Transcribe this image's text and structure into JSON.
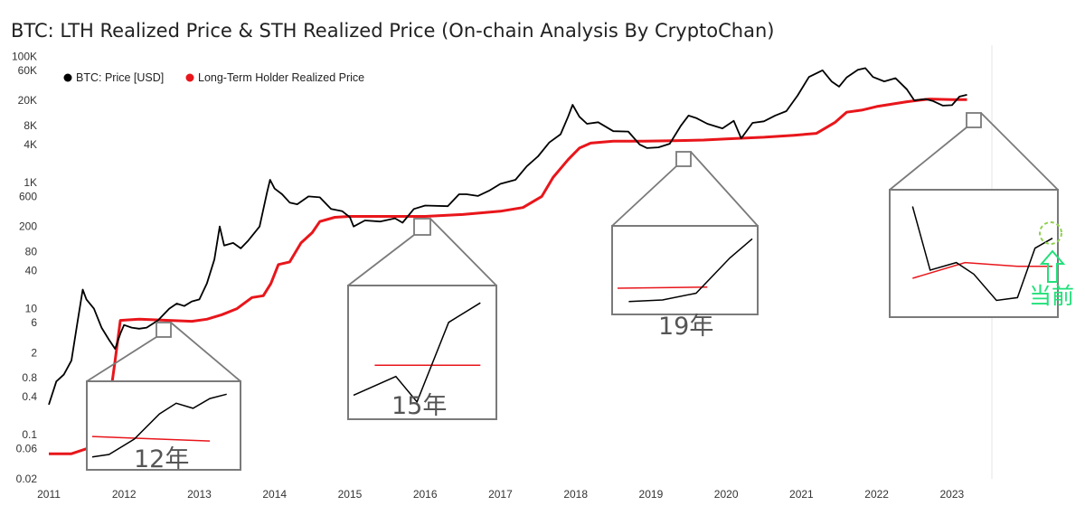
{
  "chart_data": {
    "type": "line",
    "title": "BTC: LTH Realized Price & STH Realized Price (On-chain Analysis By CryptoChan)",
    "y_scale": "log",
    "ylim": [
      0.02,
      150000
    ],
    "xlim": [
      2011.0,
      2023.35
    ],
    "y_ticks": [
      {
        "value": 100000,
        "label": "100K"
      },
      {
        "value": 60000,
        "label": "60K"
      },
      {
        "value": 20000,
        "label": "20K"
      },
      {
        "value": 8000,
        "label": "8K"
      },
      {
        "value": 4000,
        "label": "4K"
      },
      {
        "value": 1000,
        "label": "1K"
      },
      {
        "value": 600,
        "label": "600"
      },
      {
        "value": 200,
        "label": "200"
      },
      {
        "value": 80,
        "label": "80"
      },
      {
        "value": 40,
        "label": "40"
      },
      {
        "value": 10,
        "label": "10"
      },
      {
        "value": 6,
        "label": "6"
      },
      {
        "value": 2,
        "label": "2"
      },
      {
        "value": 0.8,
        "label": "0.8"
      },
      {
        "value": 0.4,
        "label": "0.4"
      },
      {
        "value": 0.1,
        "label": "0.1"
      },
      {
        "value": 0.06,
        "label": "0.06"
      },
      {
        "value": 0.02,
        "label": "0.02"
      }
    ],
    "x_ticks": [
      {
        "value": 2011,
        "label": "2011"
      },
      {
        "value": 2012,
        "label": "2012"
      },
      {
        "value": 2013,
        "label": "2013"
      },
      {
        "value": 2014,
        "label": "2014"
      },
      {
        "value": 2015,
        "label": "2015"
      },
      {
        "value": 2016,
        "label": "2016"
      },
      {
        "value": 2017,
        "label": "2017"
      },
      {
        "value": 2018,
        "label": "2018"
      },
      {
        "value": 2019,
        "label": "2019"
      },
      {
        "value": 2020,
        "label": "2020"
      },
      {
        "value": 2021,
        "label": "2021"
      },
      {
        "value": 2022,
        "label": "2022"
      },
      {
        "value": 2023,
        "label": "2023"
      }
    ],
    "legend_position": "top-left",
    "series": [
      {
        "name": "BTC: Price [USD]",
        "color": "#000000",
        "points": [
          [
            2011.0,
            0.3
          ],
          [
            2011.1,
            0.7
          ],
          [
            2011.2,
            0.9
          ],
          [
            2011.3,
            1.5
          ],
          [
            2011.38,
            6
          ],
          [
            2011.45,
            20
          ],
          [
            2011.5,
            14
          ],
          [
            2011.6,
            10
          ],
          [
            2011.7,
            5
          ],
          [
            2011.8,
            3.2
          ],
          [
            2011.88,
            2.3
          ],
          [
            2011.95,
            4
          ],
          [
            2012.0,
            5.5
          ],
          [
            2012.1,
            5
          ],
          [
            2012.2,
            4.8
          ],
          [
            2012.3,
            5
          ],
          [
            2012.45,
            6.5
          ],
          [
            2012.6,
            10
          ],
          [
            2012.7,
            12
          ],
          [
            2012.8,
            11
          ],
          [
            2012.9,
            13
          ],
          [
            2013.0,
            14
          ],
          [
            2013.1,
            25
          ],
          [
            2013.2,
            60
          ],
          [
            2013.27,
            200
          ],
          [
            2013.33,
            100
          ],
          [
            2013.45,
            110
          ],
          [
            2013.55,
            90
          ],
          [
            2013.65,
            120
          ],
          [
            2013.8,
            200
          ],
          [
            2013.9,
            700
          ],
          [
            2013.94,
            1100
          ],
          [
            2014.0,
            800
          ],
          [
            2014.1,
            650
          ],
          [
            2014.2,
            480
          ],
          [
            2014.3,
            450
          ],
          [
            2014.45,
            600
          ],
          [
            2014.6,
            580
          ],
          [
            2014.75,
            380
          ],
          [
            2014.9,
            350
          ],
          [
            2015.0,
            280
          ],
          [
            2015.05,
            200
          ],
          [
            2015.2,
            250
          ],
          [
            2015.4,
            240
          ],
          [
            2015.6,
            270
          ],
          [
            2015.7,
            230
          ],
          [
            2015.85,
            380
          ],
          [
            2016.0,
            430
          ],
          [
            2016.3,
            420
          ],
          [
            2016.45,
            650
          ],
          [
            2016.55,
            650
          ],
          [
            2016.7,
            610
          ],
          [
            2016.85,
            740
          ],
          [
            2017.0,
            950
          ],
          [
            2017.2,
            1100
          ],
          [
            2017.35,
            1800
          ],
          [
            2017.5,
            2600
          ],
          [
            2017.65,
            4300
          ],
          [
            2017.8,
            5800
          ],
          [
            2017.9,
            11000
          ],
          [
            2017.96,
            17000
          ],
          [
            2018.05,
            11000
          ],
          [
            2018.15,
            8500
          ],
          [
            2018.3,
            9000
          ],
          [
            2018.5,
            6500
          ],
          [
            2018.7,
            6400
          ],
          [
            2018.85,
            4000
          ],
          [
            2018.95,
            3500
          ],
          [
            2019.1,
            3600
          ],
          [
            2019.25,
            4100
          ],
          [
            2019.4,
            8000
          ],
          [
            2019.5,
            11500
          ],
          [
            2019.6,
            10500
          ],
          [
            2019.75,
            8500
          ],
          [
            2019.95,
            7200
          ],
          [
            2020.1,
            9500
          ],
          [
            2020.2,
            5000
          ],
          [
            2020.35,
            8800
          ],
          [
            2020.5,
            9300
          ],
          [
            2020.65,
            11500
          ],
          [
            2020.8,
            13500
          ],
          [
            2020.95,
            24000
          ],
          [
            2021.1,
            47000
          ],
          [
            2021.28,
            60000
          ],
          [
            2021.4,
            40000
          ],
          [
            2021.5,
            33000
          ],
          [
            2021.6,
            46000
          ],
          [
            2021.75,
            61000
          ],
          [
            2021.85,
            65000
          ],
          [
            2021.95,
            47000
          ],
          [
            2022.1,
            40000
          ],
          [
            2022.25,
            45000
          ],
          [
            2022.4,
            30000
          ],
          [
            2022.5,
            20000
          ],
          [
            2022.65,
            21000
          ],
          [
            2022.75,
            19500
          ],
          [
            2022.88,
            16500
          ],
          [
            2023.0,
            16800
          ],
          [
            2023.1,
            23000
          ],
          [
            2023.2,
            24500
          ]
        ]
      },
      {
        "name": "Long-Term Holder Realized Price",
        "color": "#e8161b",
        "points": [
          [
            2011.0,
            0.05
          ],
          [
            2011.3,
            0.05
          ],
          [
            2011.5,
            0.06
          ],
          [
            2011.7,
            0.1
          ],
          [
            2011.8,
            0.3
          ],
          [
            2011.88,
            1.5
          ],
          [
            2011.95,
            6.5
          ],
          [
            2012.2,
            6.8
          ],
          [
            2012.6,
            6.5
          ],
          [
            2012.9,
            6.3
          ],
          [
            2013.1,
            6.8
          ],
          [
            2013.3,
            8
          ],
          [
            2013.5,
            10
          ],
          [
            2013.7,
            15
          ],
          [
            2013.85,
            16
          ],
          [
            2013.95,
            25
          ],
          [
            2014.05,
            50
          ],
          [
            2014.2,
            55
          ],
          [
            2014.35,
            110
          ],
          [
            2014.5,
            160
          ],
          [
            2014.6,
            240
          ],
          [
            2014.8,
            280
          ],
          [
            2015.0,
            290
          ],
          [
            2015.5,
            290
          ],
          [
            2016.0,
            290
          ],
          [
            2016.5,
            310
          ],
          [
            2017.0,
            350
          ],
          [
            2017.3,
            400
          ],
          [
            2017.55,
            600
          ],
          [
            2017.7,
            1200
          ],
          [
            2017.9,
            2300
          ],
          [
            2018.05,
            3500
          ],
          [
            2018.2,
            4200
          ],
          [
            2018.5,
            4500
          ],
          [
            2018.9,
            4500
          ],
          [
            2019.3,
            4600
          ],
          [
            2019.7,
            4700
          ],
          [
            2020.0,
            4900
          ],
          [
            2020.5,
            5200
          ],
          [
            2020.9,
            5600
          ],
          [
            2021.2,
            6000
          ],
          [
            2021.45,
            9000
          ],
          [
            2021.6,
            13000
          ],
          [
            2021.8,
            14000
          ],
          [
            2022.0,
            16000
          ],
          [
            2022.4,
            19000
          ],
          [
            2022.7,
            21000
          ],
          [
            2023.0,
            20500
          ],
          [
            2023.2,
            20500
          ]
        ]
      }
    ]
  },
  "chart_title_text": "BTC: LTH Realized Price & STH Realized Price (On-chain Analysis By CryptoChan)",
  "legend": {
    "price_label": "BTC: Price [USD]",
    "lth_label": "Long-Term Holder Realized Price"
  },
  "zoom_labels": {
    "z2012": "12年",
    "z2015": "15年",
    "z2019": "19年"
  },
  "note_label": "当前",
  "colors": {
    "price": "#000000",
    "lth": "#e8161b",
    "zoom_frame": "#7a7a7a",
    "note": "#22e07a"
  }
}
